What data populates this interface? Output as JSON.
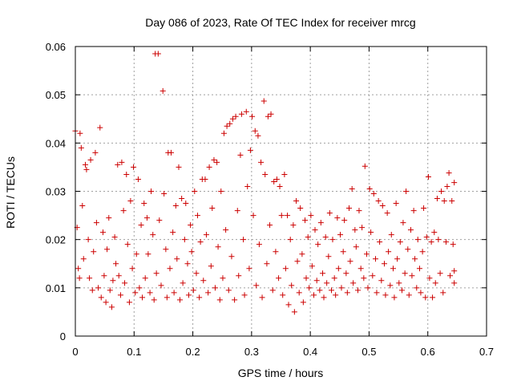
{
  "chart_data": {
    "type": "scatter",
    "title": "Day 086 of 2023, Rate Of TEC Index for receiver mrcg",
    "xlabel": "GPS time / hours",
    "ylabel": "ROTI / TECUs",
    "xlim": [
      0,
      0.7
    ],
    "ylim": [
      0,
      0.06
    ],
    "xticks": [
      0,
      0.1,
      0.2,
      0.3,
      0.4,
      0.5,
      0.6,
      0.7
    ],
    "xtick_labels": [
      "0",
      "0.1",
      "0.2",
      "0.3",
      "0.4",
      "0.5",
      "0.6",
      "0.7"
    ],
    "yticks": [
      0,
      0.01,
      0.02,
      0.03,
      0.04,
      0.05,
      0.06
    ],
    "ytick_labels": [
      "0",
      "0.01",
      "0.02",
      "0.03",
      "0.04",
      "0.05",
      "0.06"
    ],
    "grid": true,
    "marker": "+",
    "color": "#cc0000",
    "series": [
      {
        "name": "mrcg",
        "points": [
          [
            0.0,
            0.0425
          ],
          [
            0.003,
            0.0225
          ],
          [
            0.005,
            0.014
          ],
          [
            0.007,
            0.012
          ],
          [
            0.008,
            0.042
          ],
          [
            0.01,
            0.039
          ],
          [
            0.012,
            0.027
          ],
          [
            0.014,
            0.016
          ],
          [
            0.017,
            0.0355
          ],
          [
            0.019,
            0.0345
          ],
          [
            0.022,
            0.02
          ],
          [
            0.024,
            0.012
          ],
          [
            0.026,
            0.0365
          ],
          [
            0.029,
            0.0095
          ],
          [
            0.031,
            0.0175
          ],
          [
            0.034,
            0.038
          ],
          [
            0.036,
            0.0235
          ],
          [
            0.039,
            0.01
          ],
          [
            0.042,
            0.0432
          ],
          [
            0.044,
            0.008
          ],
          [
            0.047,
            0.0215
          ],
          [
            0.049,
            0.0125
          ],
          [
            0.052,
            0.007
          ],
          [
            0.054,
            0.018
          ],
          [
            0.057,
            0.0245
          ],
          [
            0.059,
            0.0095
          ],
          [
            0.062,
            0.006
          ],
          [
            0.064,
            0.0115
          ],
          [
            0.067,
            0.0205
          ],
          [
            0.069,
            0.015
          ],
          [
            0.072,
            0.0355
          ],
          [
            0.074,
            0.0125
          ],
          [
            0.077,
            0.0085
          ],
          [
            0.079,
            0.036
          ],
          [
            0.082,
            0.026
          ],
          [
            0.084,
            0.011
          ],
          [
            0.087,
            0.0335
          ],
          [
            0.089,
            0.019
          ],
          [
            0.092,
            0.007
          ],
          [
            0.094,
            0.028
          ],
          [
            0.097,
            0.014
          ],
          [
            0.099,
            0.035
          ],
          [
            0.102,
            0.009
          ],
          [
            0.104,
            0.017
          ],
          [
            0.107,
            0.0325
          ],
          [
            0.109,
            0.01
          ],
          [
            0.112,
            0.023
          ],
          [
            0.114,
            0.008
          ],
          [
            0.117,
            0.0275
          ],
          [
            0.119,
            0.012
          ],
          [
            0.122,
            0.0245
          ],
          [
            0.124,
            0.017
          ],
          [
            0.127,
            0.009
          ],
          [
            0.129,
            0.03
          ],
          [
            0.132,
            0.021
          ],
          [
            0.134,
            0.0075
          ],
          [
            0.136,
            0.0585
          ],
          [
            0.138,
            0.013
          ],
          [
            0.141,
            0.0585
          ],
          [
            0.143,
            0.024
          ],
          [
            0.146,
            0.0105
          ],
          [
            0.149,
            0.0508
          ],
          [
            0.151,
            0.0295
          ],
          [
            0.154,
            0.018
          ],
          [
            0.156,
            0.008
          ],
          [
            0.158,
            0.038
          ],
          [
            0.161,
            0.014
          ],
          [
            0.163,
            0.038
          ],
          [
            0.166,
            0.0215
          ],
          [
            0.168,
            0.009
          ],
          [
            0.171,
            0.027
          ],
          [
            0.173,
            0.016
          ],
          [
            0.176,
            0.035
          ],
          [
            0.178,
            0.0075
          ],
          [
            0.181,
            0.0285
          ],
          [
            0.183,
            0.011
          ],
          [
            0.186,
            0.02
          ],
          [
            0.188,
            0.0275
          ],
          [
            0.191,
            0.015
          ],
          [
            0.193,
            0.0085
          ],
          [
            0.196,
            0.023
          ],
          [
            0.198,
            0.0175
          ],
          [
            0.201,
            0.0095
          ],
          [
            0.203,
            0.03
          ],
          [
            0.206,
            0.013
          ],
          [
            0.208,
            0.025
          ],
          [
            0.211,
            0.008
          ],
          [
            0.213,
            0.0195
          ],
          [
            0.216,
            0.0325
          ],
          [
            0.218,
            0.0115
          ],
          [
            0.221,
            0.0325
          ],
          [
            0.223,
            0.021
          ],
          [
            0.226,
            0.009
          ],
          [
            0.228,
            0.035
          ],
          [
            0.231,
            0.0145
          ],
          [
            0.233,
            0.0265
          ],
          [
            0.236,
            0.0365
          ],
          [
            0.238,
            0.01
          ],
          [
            0.241,
            0.036
          ],
          [
            0.243,
            0.0185
          ],
          [
            0.246,
            0.0075
          ],
          [
            0.248,
            0.03
          ],
          [
            0.251,
            0.012
          ],
          [
            0.253,
            0.042
          ],
          [
            0.256,
            0.022
          ],
          [
            0.258,
            0.0435
          ],
          [
            0.261,
            0.0095
          ],
          [
            0.263,
            0.044
          ],
          [
            0.266,
            0.0165
          ],
          [
            0.268,
            0.045
          ],
          [
            0.271,
            0.0075
          ],
          [
            0.273,
            0.0455
          ],
          [
            0.276,
            0.026
          ],
          [
            0.278,
            0.0125
          ],
          [
            0.281,
            0.0375
          ],
          [
            0.283,
            0.046
          ],
          [
            0.286,
            0.02
          ],
          [
            0.288,
            0.0085
          ],
          [
            0.291,
            0.0465
          ],
          [
            0.293,
            0.031
          ],
          [
            0.296,
            0.014
          ],
          [
            0.298,
            0.0385
          ],
          [
            0.301,
            0.0455
          ],
          [
            0.303,
            0.025
          ],
          [
            0.306,
            0.0425
          ],
          [
            0.308,
            0.0105
          ],
          [
            0.311,
            0.0415
          ],
          [
            0.313,
            0.019
          ],
          [
            0.316,
            0.036
          ],
          [
            0.318,
            0.008
          ],
          [
            0.321,
            0.0487
          ],
          [
            0.323,
            0.0335
          ],
          [
            0.326,
            0.015
          ],
          [
            0.328,
            0.0455
          ],
          [
            0.331,
            0.023
          ],
          [
            0.333,
            0.046
          ],
          [
            0.336,
            0.0095
          ],
          [
            0.338,
            0.032
          ],
          [
            0.341,
            0.0175
          ],
          [
            0.343,
            0.0325
          ],
          [
            0.346,
            0.012
          ],
          [
            0.348,
            0.031
          ],
          [
            0.351,
            0.025
          ],
          [
            0.353,
            0.0085
          ],
          [
            0.356,
            0.0335
          ],
          [
            0.358,
            0.014
          ],
          [
            0.361,
            0.025
          ],
          [
            0.363,
            0.0065
          ],
          [
            0.366,
            0.02
          ],
          [
            0.368,
            0.0105
          ],
          [
            0.371,
            0.023
          ],
          [
            0.373,
            0.005
          ],
          [
            0.376,
            0.028
          ],
          [
            0.378,
            0.0155
          ],
          [
            0.381,
            0.009
          ],
          [
            0.383,
            0.0265
          ],
          [
            0.386,
            0.017
          ],
          [
            0.388,
            0.007
          ],
          [
            0.391,
            0.024
          ],
          [
            0.393,
            0.012
          ],
          [
            0.396,
            0.0205
          ],
          [
            0.398,
            0.01
          ],
          [
            0.401,
            0.025
          ],
          [
            0.403,
            0.0145
          ],
          [
            0.406,
            0.0085
          ],
          [
            0.408,
            0.022
          ],
          [
            0.411,
            0.0115
          ],
          [
            0.413,
            0.019
          ],
          [
            0.416,
            0.0095
          ],
          [
            0.418,
            0.0235
          ],
          [
            0.421,
            0.013
          ],
          [
            0.423,
            0.008
          ],
          [
            0.426,
            0.0205
          ],
          [
            0.428,
            0.011
          ],
          [
            0.431,
            0.0165
          ],
          [
            0.433,
            0.0255
          ],
          [
            0.436,
            0.0095
          ],
          [
            0.438,
            0.02
          ],
          [
            0.441,
            0.012
          ],
          [
            0.443,
            0.0085
          ],
          [
            0.446,
            0.0245
          ],
          [
            0.448,
            0.014
          ],
          [
            0.451,
            0.021
          ],
          [
            0.453,
            0.01
          ],
          [
            0.456,
            0.0175
          ],
          [
            0.458,
            0.024
          ],
          [
            0.461,
            0.013
          ],
          [
            0.463,
            0.009
          ],
          [
            0.466,
            0.0265
          ],
          [
            0.468,
            0.0155
          ],
          [
            0.471,
            0.0305
          ],
          [
            0.473,
            0.011
          ],
          [
            0.476,
            0.022
          ],
          [
            0.478,
            0.0185
          ],
          [
            0.481,
            0.0095
          ],
          [
            0.483,
            0.026
          ],
          [
            0.486,
            0.014
          ],
          [
            0.488,
            0.0225
          ],
          [
            0.491,
            0.012
          ],
          [
            0.493,
            0.0352
          ],
          [
            0.496,
            0.017
          ],
          [
            0.498,
            0.01
          ],
          [
            0.501,
            0.0305
          ],
          [
            0.503,
            0.0215
          ],
          [
            0.506,
            0.0125
          ],
          [
            0.508,
            0.0295
          ],
          [
            0.511,
            0.016
          ],
          [
            0.513,
            0.009
          ],
          [
            0.516,
            0.028
          ],
          [
            0.518,
            0.0195
          ],
          [
            0.521,
            0.0115
          ],
          [
            0.523,
            0.027
          ],
          [
            0.526,
            0.015
          ],
          [
            0.528,
            0.0085
          ],
          [
            0.531,
            0.0255
          ],
          [
            0.533,
            0.0175
          ],
          [
            0.536,
            0.0105
          ],
          [
            0.538,
            0.021
          ],
          [
            0.541,
            0.014
          ],
          [
            0.543,
            0.008
          ],
          [
            0.546,
            0.0275
          ],
          [
            0.548,
            0.016
          ],
          [
            0.551,
            0.011
          ],
          [
            0.553,
            0.0195
          ],
          [
            0.556,
            0.0095
          ],
          [
            0.558,
            0.0235
          ],
          [
            0.561,
            0.013
          ],
          [
            0.563,
            0.03
          ],
          [
            0.566,
            0.018
          ],
          [
            0.568,
            0.0085
          ],
          [
            0.571,
            0.022
          ],
          [
            0.573,
            0.0125
          ],
          [
            0.576,
            0.026
          ],
          [
            0.578,
            0.016
          ],
          [
            0.581,
            0.01
          ],
          [
            0.583,
            0.02
          ],
          [
            0.586,
            0.014
          ],
          [
            0.588,
            0.009
          ],
          [
            0.591,
            0.0175
          ],
          [
            0.593,
            0.0265
          ],
          [
            0.596,
            0.008
          ],
          [
            0.598,
            0.0205
          ],
          [
            0.601,
            0.033
          ],
          [
            0.603,
            0.012
          ],
          [
            0.606,
            0.0195
          ],
          [
            0.608,
            0.008
          ],
          [
            0.611,
            0.0215
          ],
          [
            0.613,
            0.011
          ],
          [
            0.616,
            0.0285
          ],
          [
            0.618,
            0.02
          ],
          [
            0.621,
            0.013
          ],
          [
            0.623,
            0.03
          ],
          [
            0.626,
            0.009
          ],
          [
            0.628,
            0.028
          ],
          [
            0.631,
            0.0195
          ],
          [
            0.633,
            0.031
          ],
          [
            0.636,
            0.0338
          ],
          [
            0.638,
            0.0125
          ],
          [
            0.641,
            0.028
          ],
          [
            0.643,
            0.019
          ],
          [
            0.645,
            0.011
          ],
          [
            0.645,
            0.0318
          ],
          [
            0.645,
            0.0135
          ]
        ]
      }
    ]
  }
}
